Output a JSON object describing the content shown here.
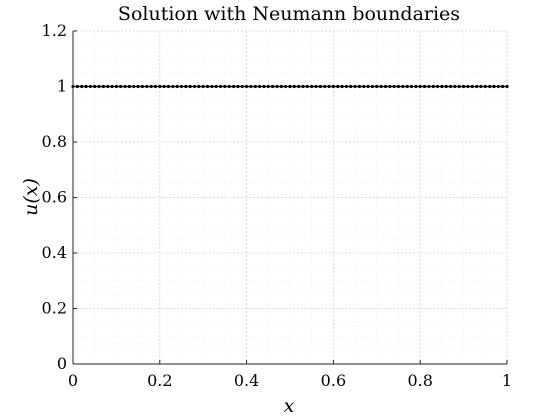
{
  "chart_data": {
    "type": "line",
    "title": "Solution with Neumann boundaries",
    "xlabel": "x",
    "ylabel": "u(x)",
    "xlim": [
      0,
      1
    ],
    "ylim": [
      0,
      1.2
    ],
    "xticks": [
      0,
      0.2,
      0.4,
      0.6,
      0.8,
      1
    ],
    "xtick_labels": [
      "0",
      "0.2",
      "0.4",
      "0.6",
      "0.8",
      "1"
    ],
    "yticks": [
      0,
      0.2,
      0.4,
      0.6,
      0.8,
      1,
      1.2
    ],
    "ytick_labels": [
      "0",
      "0.2",
      "0.4",
      "0.6",
      "0.8",
      "1",
      "1.2"
    ],
    "grid": true,
    "minor_grid": true,
    "series": [
      {
        "color": "#000000",
        "marker": "dot",
        "x": [
          0,
          0.01,
          0.02,
          0.03,
          0.04,
          0.05,
          0.06,
          0.07,
          0.08,
          0.09,
          0.1,
          0.11,
          0.12,
          0.13,
          0.14,
          0.15,
          0.16,
          0.17,
          0.18,
          0.19,
          0.2,
          0.21,
          0.22,
          0.23,
          0.24,
          0.25,
          0.26,
          0.27,
          0.28,
          0.29,
          0.3,
          0.31,
          0.32,
          0.33,
          0.34,
          0.35,
          0.36,
          0.37,
          0.38,
          0.39,
          0.4,
          0.41,
          0.42,
          0.43,
          0.44,
          0.45,
          0.46,
          0.47,
          0.48,
          0.49,
          0.5,
          0.51,
          0.52,
          0.53,
          0.54,
          0.55,
          0.56,
          0.57,
          0.58,
          0.59,
          0.6,
          0.61,
          0.62,
          0.63,
          0.64,
          0.65,
          0.66,
          0.67,
          0.68,
          0.69,
          0.7,
          0.71,
          0.72,
          0.73,
          0.74,
          0.75,
          0.76,
          0.77,
          0.78,
          0.79,
          0.8,
          0.81,
          0.82,
          0.83,
          0.84,
          0.85,
          0.86,
          0.87,
          0.88,
          0.89,
          0.9,
          0.91,
          0.92,
          0.93,
          0.94,
          0.95,
          0.96,
          0.97,
          0.98,
          0.99,
          1
        ],
        "y": [
          1,
          1,
          1,
          1,
          1,
          1,
          1,
          1,
          1,
          1,
          1,
          1,
          1,
          1,
          1,
          1,
          1,
          1,
          1,
          1,
          1,
          1,
          1,
          1,
          1,
          1,
          1,
          1,
          1,
          1,
          1,
          1,
          1,
          1,
          1,
          1,
          1,
          1,
          1,
          1,
          1,
          1,
          1,
          1,
          1,
          1,
          1,
          1,
          1,
          1,
          1,
          1,
          1,
          1,
          1,
          1,
          1,
          1,
          1,
          1,
          1,
          1,
          1,
          1,
          1,
          1,
          1,
          1,
          1,
          1,
          1,
          1,
          1,
          1,
          1,
          1,
          1,
          1,
          1,
          1,
          1,
          1,
          1,
          1,
          1,
          1,
          1,
          1,
          1,
          1,
          1,
          1,
          1,
          1,
          1,
          1,
          1,
          1,
          1,
          1,
          1
        ]
      }
    ]
  }
}
